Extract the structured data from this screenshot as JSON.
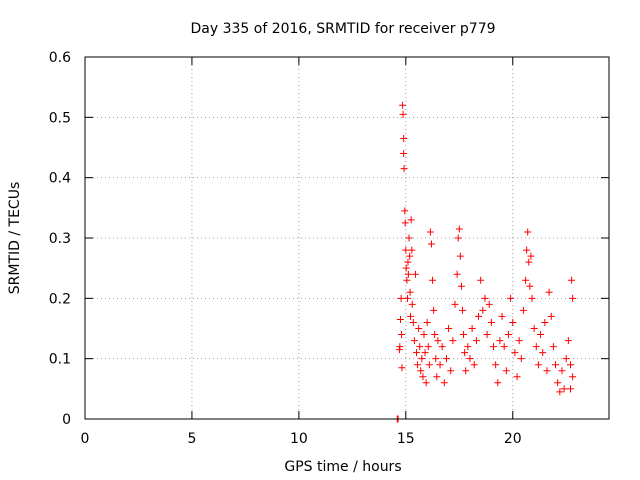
{
  "chart_data": {
    "type": "scatter",
    "title": "Day 335 of 2016, SRMTID for receiver p779",
    "xlabel": "GPS time / hours",
    "ylabel": "SRMTID / TECUs",
    "xlim": [
      0,
      24.5
    ],
    "ylim": [
      0,
      0.6
    ],
    "x_ticks": [
      0,
      5,
      10,
      15,
      20
    ],
    "x_tick_labels": [
      "0",
      "5",
      "10",
      "15",
      "20"
    ],
    "y_ticks": [
      0,
      0.1,
      0.2,
      0.3,
      0.4,
      0.5,
      0.6
    ],
    "y_tick_labels": [
      "0",
      "0.1",
      "0.2",
      "0.3",
      "0.4",
      "0.5",
      "0.6"
    ],
    "grid": true,
    "marker": "+",
    "series": [
      {
        "name": "SRMTID",
        "color": "#ff0000",
        "points": [
          [
            14.6,
            0.0
          ],
          [
            14.62,
            0.0
          ],
          [
            14.64,
            0.0
          ],
          [
            14.7,
            0.115
          ],
          [
            14.72,
            0.12
          ],
          [
            14.75,
            0.165
          ],
          [
            14.78,
            0.2
          ],
          [
            14.8,
            0.14
          ],
          [
            14.82,
            0.085
          ],
          [
            14.85,
            0.52
          ],
          [
            14.87,
            0.505
          ],
          [
            14.9,
            0.465
          ],
          [
            14.9,
            0.44
          ],
          [
            14.92,
            0.415
          ],
          [
            14.95,
            0.345
          ],
          [
            14.97,
            0.325
          ],
          [
            15.0,
            0.28
          ],
          [
            15.02,
            0.25
          ],
          [
            15.05,
            0.23
          ],
          [
            15.08,
            0.2
          ],
          [
            15.1,
            0.26
          ],
          [
            15.12,
            0.24
          ],
          [
            15.15,
            0.3
          ],
          [
            15.18,
            0.27
          ],
          [
            15.2,
            0.21
          ],
          [
            15.22,
            0.17
          ],
          [
            15.25,
            0.33
          ],
          [
            15.28,
            0.28
          ],
          [
            15.3,
            0.19
          ],
          [
            15.35,
            0.16
          ],
          [
            15.4,
            0.13
          ],
          [
            15.45,
            0.24
          ],
          [
            15.5,
            0.11
          ],
          [
            15.55,
            0.09
          ],
          [
            15.6,
            0.15
          ],
          [
            15.65,
            0.12
          ],
          [
            15.7,
            0.08
          ],
          [
            15.75,
            0.1
          ],
          [
            15.8,
            0.07
          ],
          [
            15.85,
            0.14
          ],
          [
            15.9,
            0.11
          ],
          [
            15.95,
            0.06
          ],
          [
            16.0,
            0.16
          ],
          [
            16.05,
            0.12
          ],
          [
            16.1,
            0.09
          ],
          [
            16.15,
            0.31
          ],
          [
            16.2,
            0.29
          ],
          [
            16.25,
            0.23
          ],
          [
            16.3,
            0.18
          ],
          [
            16.35,
            0.14
          ],
          [
            16.4,
            0.1
          ],
          [
            16.45,
            0.07
          ],
          [
            16.5,
            0.13
          ],
          [
            16.6,
            0.09
          ],
          [
            16.7,
            0.12
          ],
          [
            16.8,
            0.06
          ],
          [
            16.9,
            0.1
          ],
          [
            17.0,
            0.15
          ],
          [
            17.1,
            0.08
          ],
          [
            17.2,
            0.13
          ],
          [
            17.3,
            0.19
          ],
          [
            17.4,
            0.24
          ],
          [
            17.45,
            0.3
          ],
          [
            17.5,
            0.315
          ],
          [
            17.55,
            0.27
          ],
          [
            17.6,
            0.22
          ],
          [
            17.65,
            0.18
          ],
          [
            17.7,
            0.14
          ],
          [
            17.75,
            0.11
          ],
          [
            17.8,
            0.08
          ],
          [
            17.9,
            0.12
          ],
          [
            18.0,
            0.1
          ],
          [
            18.1,
            0.15
          ],
          [
            18.2,
            0.09
          ],
          [
            18.3,
            0.13
          ],
          [
            18.4,
            0.17
          ],
          [
            18.5,
            0.23
          ],
          [
            18.6,
            0.18
          ],
          [
            18.7,
            0.2
          ],
          [
            18.8,
            0.14
          ],
          [
            18.9,
            0.19
          ],
          [
            19.0,
            0.16
          ],
          [
            19.1,
            0.12
          ],
          [
            19.2,
            0.09
          ],
          [
            19.3,
            0.06
          ],
          [
            19.4,
            0.13
          ],
          [
            19.5,
            0.17
          ],
          [
            19.6,
            0.12
          ],
          [
            19.7,
            0.08
          ],
          [
            19.8,
            0.14
          ],
          [
            19.9,
            0.2
          ],
          [
            20.0,
            0.16
          ],
          [
            20.1,
            0.11
          ],
          [
            20.2,
            0.07
          ],
          [
            20.3,
            0.13
          ],
          [
            20.4,
            0.1
          ],
          [
            20.5,
            0.18
          ],
          [
            20.6,
            0.23
          ],
          [
            20.65,
            0.28
          ],
          [
            20.7,
            0.31
          ],
          [
            20.75,
            0.26
          ],
          [
            20.8,
            0.22
          ],
          [
            20.85,
            0.27
          ],
          [
            20.9,
            0.2
          ],
          [
            21.0,
            0.15
          ],
          [
            21.1,
            0.12
          ],
          [
            21.2,
            0.09
          ],
          [
            21.3,
            0.14
          ],
          [
            21.4,
            0.11
          ],
          [
            21.5,
            0.16
          ],
          [
            21.6,
            0.08
          ],
          [
            21.7,
            0.21
          ],
          [
            21.8,
            0.17
          ],
          [
            21.9,
            0.12
          ],
          [
            22.0,
            0.09
          ],
          [
            22.1,
            0.06
          ],
          [
            22.2,
            0.045
          ],
          [
            22.3,
            0.08
          ],
          [
            22.4,
            0.05
          ],
          [
            22.5,
            0.1
          ],
          [
            22.6,
            0.13
          ],
          [
            22.7,
            0.09
          ],
          [
            22.75,
            0.23
          ],
          [
            22.8,
            0.2
          ],
          [
            22.8,
            0.07
          ],
          [
            22.7,
            0.05
          ]
        ]
      }
    ]
  }
}
